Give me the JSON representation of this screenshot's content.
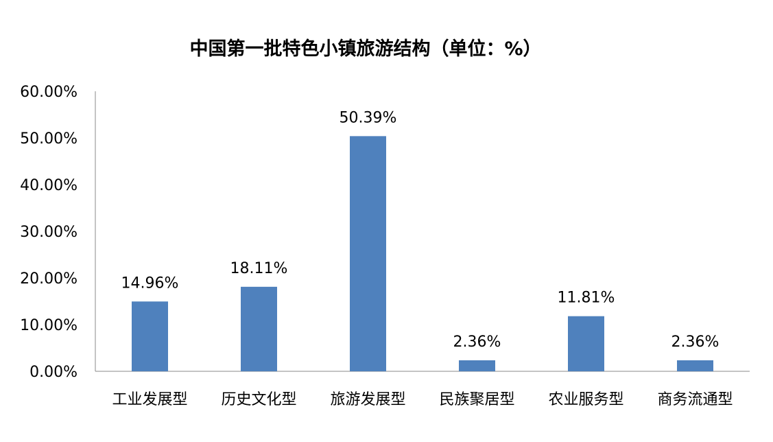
{
  "chart_data": {
    "type": "bar",
    "title": "中国第一批特色小镇旅游结构（单位：%）",
    "xlabel": "",
    "ylabel": "",
    "ylim": [
      0,
      60
    ],
    "y_ticks": [
      "0.00%",
      "10.00%",
      "20.00%",
      "30.00%",
      "40.00%",
      "50.00%",
      "60.00%"
    ],
    "categories": [
      "工业发展型",
      "历史文化型",
      "旅游发展型",
      "民族聚居型",
      "农业服务型",
      "商务流通型"
    ],
    "values": [
      14.96,
      18.11,
      50.39,
      2.36,
      11.81,
      2.36
    ],
    "data_labels": [
      "14.96%",
      "18.11%",
      "50.39%",
      "2.36%",
      "11.81%",
      "2.36%"
    ],
    "bar_color": "#4F81BD",
    "grid": false,
    "legend": "none"
  }
}
